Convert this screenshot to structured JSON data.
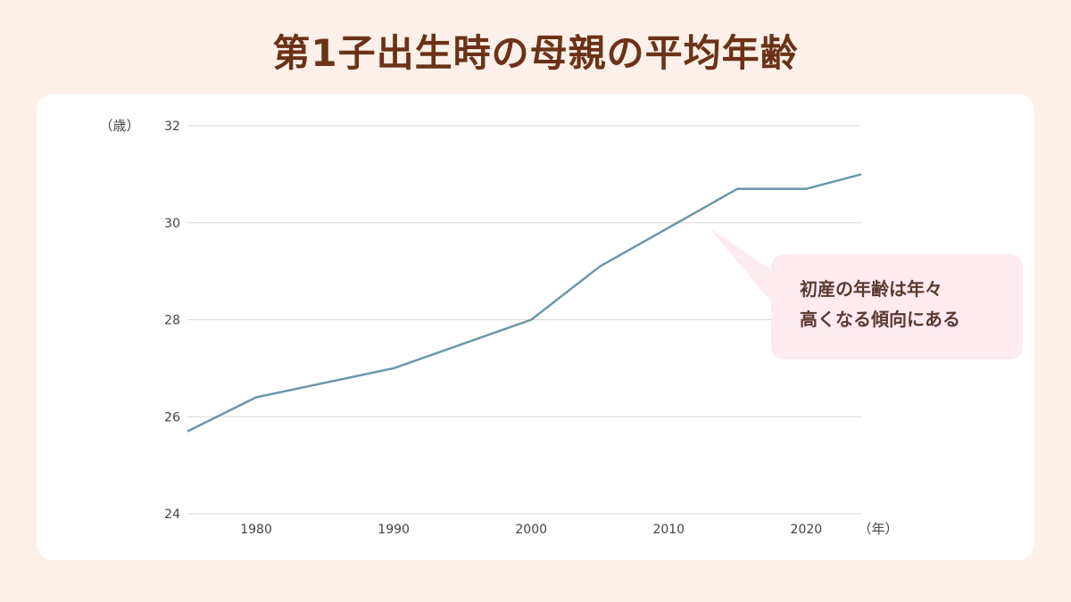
{
  "title": "第1子出生時の母親の平均年齢",
  "colors": {
    "background": "#fcf0e8",
    "title": "#6b3219",
    "card": "#ffffff",
    "line": "#6a97a8",
    "grid": "#d8d8d8",
    "callout": "#fdebf0",
    "callout_text": "#5a3a2e"
  },
  "callout": {
    "line1": "初産の年齢は年々",
    "line2": "高くなる傾向にある"
  },
  "chart_data": {
    "type": "line",
    "ylabel": "（歳）",
    "xlabel": "（年）",
    "ylim": [
      24,
      32
    ],
    "yticks": [
      24,
      26,
      28,
      30,
      32
    ],
    "xlim": [
      1975,
      2024
    ],
    "xticks": [
      1980,
      1990,
      2000,
      2010,
      2020
    ],
    "grid": true,
    "series": [
      {
        "x": [
          1975,
          1980,
          1985,
          1990,
          1995,
          2000,
          2005,
          2010,
          2015,
          2020,
          2024
        ],
        "y": [
          25.7,
          26.4,
          26.7,
          27.0,
          27.5,
          28.0,
          29.1,
          29.9,
          30.7,
          30.7,
          31.0
        ]
      }
    ]
  }
}
